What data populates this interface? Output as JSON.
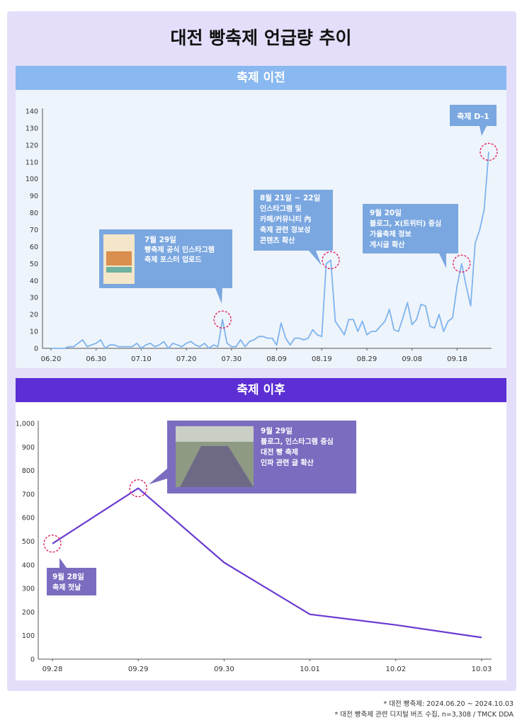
{
  "title": "대전 빵축제 언급량 추이",
  "footnotes": [
    "* 대전 빵축제: 2024.06.20 ~ 2024.10.03",
    "* 대전 빵축제 관련 디지털 버즈 수집, n=3,308 / TMCK DDA"
  ],
  "colors": {
    "frame": "#e4defa",
    "band_before": "#8ab8f0",
    "band_after": "#5b2fd4",
    "line_before": "#7eb3ee",
    "line_after": "#6a3bd0",
    "callout_before": "#7aa7e0",
    "callout_after": "#7b6cc0",
    "highlight": "#e0245e"
  },
  "chart_data": [
    {
      "type": "line",
      "title": "축제 이전",
      "ylim": [
        0,
        140
      ],
      "yticks": [
        0,
        10,
        20,
        30,
        40,
        50,
        60,
        70,
        80,
        90,
        100,
        110,
        120,
        130,
        140
      ],
      "xtick_labels": [
        "06.20",
        "06.30",
        "07.10",
        "07.20",
        "07.30",
        "08.09",
        "08.19",
        "08.29",
        "09.08",
        "09.18"
      ],
      "grid": false,
      "series": [
        {
          "values": [
            0,
            0,
            0,
            0,
            1,
            1,
            3,
            5,
            1,
            2,
            3,
            5,
            0,
            2,
            2,
            1,
            1,
            1,
            1,
            3,
            0,
            2,
            3,
            1,
            2,
            4,
            0,
            3,
            2,
            1,
            3,
            4,
            2,
            1,
            3,
            0,
            2,
            1,
            17,
            3,
            1,
            1,
            5,
            1,
            4,
            5,
            7,
            7,
            6,
            6,
            2,
            15,
            6,
            2,
            6,
            6,
            5,
            6,
            11,
            8,
            7,
            50,
            52,
            16,
            12,
            8,
            17,
            17,
            10,
            16,
            8,
            10,
            10,
            13,
            16,
            23,
            11,
            10,
            18,
            27,
            14,
            17,
            26,
            25,
            13,
            12,
            20,
            10,
            16,
            18,
            37,
            50,
            37,
            25,
            62,
            70,
            82,
            116
          ]
        }
      ],
      "annotations": [
        {
          "date": "7월 29일",
          "lines": [
            "빵축제 공식 인스타그램",
            "축제 포스터 업로드"
          ]
        },
        {
          "date": "8월 21일 ~ 22일",
          "lines": [
            "인스타그램 및",
            "카페/커뮤니티 內",
            "축제 관련 정보성",
            "콘텐츠 확산"
          ]
        },
        {
          "date": "9월 20일",
          "lines": [
            "블로그, X(트위터) 중심",
            "가을축제 정보",
            "게시글 확산"
          ]
        },
        {
          "date": "축제 D-1",
          "lines": []
        }
      ]
    },
    {
      "type": "line",
      "title": "축제 이후",
      "ylim": [
        0,
        1000
      ],
      "yticks": [
        "0",
        "100",
        "200",
        "300",
        "400",
        "500",
        "600",
        "700",
        "800",
        "900",
        "1,000"
      ],
      "categories": [
        "09.28",
        "09.29",
        "09.30",
        "10.01",
        "10.02",
        "10.03"
      ],
      "grid": false,
      "series": [
        {
          "values": [
            490,
            725,
            410,
            190,
            145,
            92
          ]
        }
      ],
      "annotations": [
        {
          "date": "9월 29일",
          "lines": [
            "블로그, 인스타그램 중심",
            "대전 빵 축제",
            "인파 관련 글 확산"
          ]
        },
        {
          "date": "9월 28일",
          "lines": [
            "축제 첫날"
          ]
        }
      ]
    }
  ]
}
